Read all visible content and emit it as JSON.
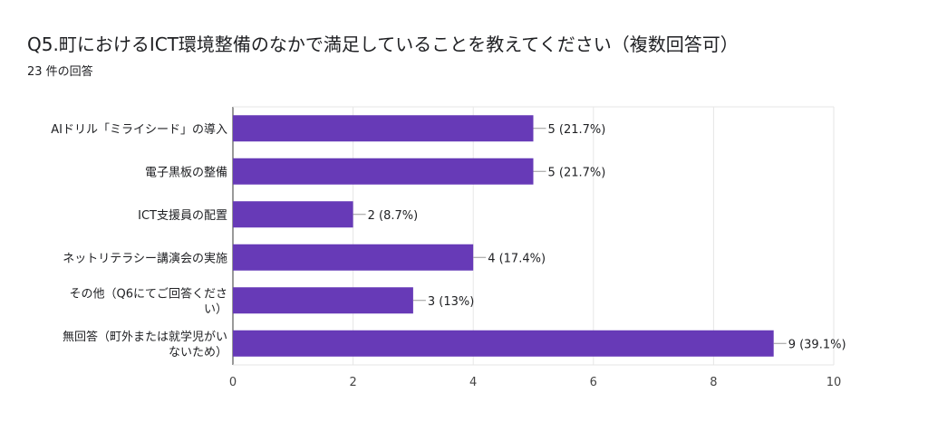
{
  "question": {
    "title": "Q5.町におけるICT環境整備のなかで満足していることを教えてください（複数回答可）",
    "response_count": "23 件の回答"
  },
  "colors": {
    "bar": "#673ab7",
    "grid": "#e6e6e6",
    "axis": "#333333",
    "text": "#202124"
  },
  "chart_data": {
    "type": "bar",
    "orientation": "horizontal",
    "categories": [
      [
        "AIドリル「ミライシード」の導入"
      ],
      [
        "電子黒板の整備"
      ],
      [
        "ICT支援員の配置"
      ],
      [
        "ネットリテラシー講演会の実施"
      ],
      [
        "その他（Q6にてご回答くださ",
        "い）"
      ],
      [
        "無回答（町外または就学児がい",
        "ないため）"
      ]
    ],
    "values": [
      5,
      5,
      2,
      4,
      3,
      9
    ],
    "value_labels": [
      "5 (21.7%)",
      "5 (21.7%)",
      "2 (8.7%)",
      "4 (17.4%)",
      "3 (13%)",
      "9 (39.1%)"
    ],
    "xlim": [
      0,
      10
    ],
    "xticks": [
      0,
      2,
      4,
      6,
      8,
      10
    ],
    "grid": true,
    "xlabel": "",
    "ylabel": ""
  }
}
